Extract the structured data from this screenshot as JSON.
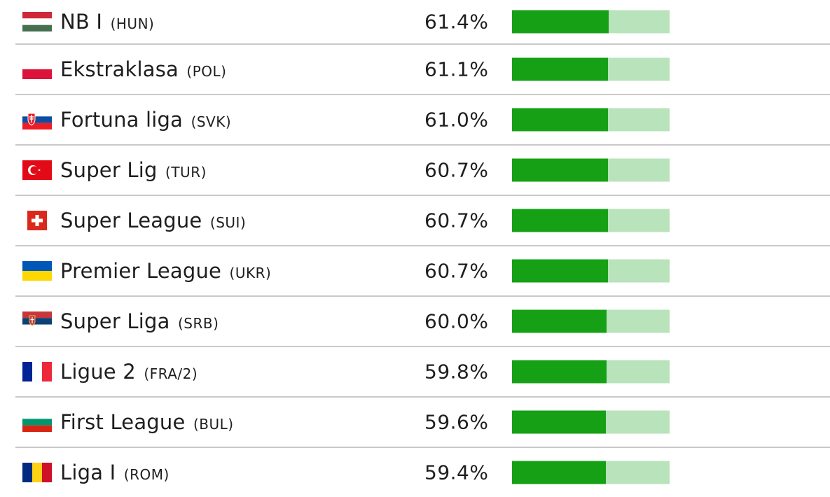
{
  "colors": {
    "bar_fill": "#16a016",
    "bar_track": "#b8e3bb",
    "divider": "#c9c9c9"
  },
  "rows": [
    {
      "flag_icon": "hungary-flag-icon",
      "league": "NB I",
      "code": "(HUN)",
      "percent_label": "61.4%",
      "value": 61.4
    },
    {
      "flag_icon": "poland-flag-icon",
      "league": "Ekstraklasa",
      "code": "(POL)",
      "percent_label": "61.1%",
      "value": 61.1
    },
    {
      "flag_icon": "slovakia-flag-icon",
      "league": "Fortuna liga",
      "code": "(SVK)",
      "percent_label": "61.0%",
      "value": 61.0
    },
    {
      "flag_icon": "turkey-flag-icon",
      "league": "Super Lig",
      "code": "(TUR)",
      "percent_label": "60.7%",
      "value": 60.7
    },
    {
      "flag_icon": "switzerland-flag-icon",
      "league": "Super League",
      "code": "(SUI)",
      "percent_label": "60.7%",
      "value": 60.7
    },
    {
      "flag_icon": "ukraine-flag-icon",
      "league": "Premier League",
      "code": "(UKR)",
      "percent_label": "60.7%",
      "value": 60.7
    },
    {
      "flag_icon": "serbia-flag-icon",
      "league": "Super Liga",
      "code": "(SRB)",
      "percent_label": "60.0%",
      "value": 60.0
    },
    {
      "flag_icon": "france-flag-icon",
      "league": "Ligue 2",
      "code": "(FRA/2)",
      "percent_label": "59.8%",
      "value": 59.8
    },
    {
      "flag_icon": "bulgaria-flag-icon",
      "league": "First League",
      "code": "(BUL)",
      "percent_label": "59.6%",
      "value": 59.6
    },
    {
      "flag_icon": "romania-flag-icon",
      "league": "Liga I",
      "code": "(ROM)",
      "percent_label": "59.4%",
      "value": 59.4
    }
  ]
}
